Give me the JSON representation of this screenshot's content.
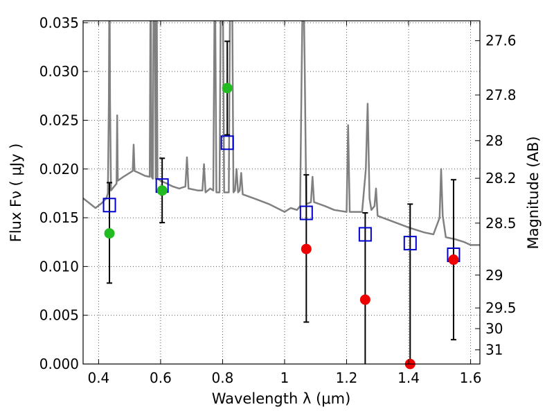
{
  "chart_data": {
    "type": "scatter",
    "xlabel": "Wavelength  λ (μm)",
    "ylabel": "Flux  Fν  ( μJy )",
    "ylabel_right": "Magnitude (AB)",
    "xlim": [
      0.35,
      1.63
    ],
    "ylim": [
      0.0,
      0.0352
    ],
    "grid": true,
    "x_ticks": [
      {
        "v": 0.4,
        "label": "0.4"
      },
      {
        "v": 0.6,
        "label": "0.6"
      },
      {
        "v": 0.8,
        "label": "0.8"
      },
      {
        "v": 1.0,
        "label": "1"
      },
      {
        "v": 1.2,
        "label": "1.2"
      },
      {
        "v": 1.4,
        "label": "1.4"
      },
      {
        "v": 1.6,
        "label": "1.6"
      }
    ],
    "y_ticks": [
      {
        "v": 0.0,
        "label": "0.000"
      },
      {
        "v": 0.005,
        "label": "0.005"
      },
      {
        "v": 0.01,
        "label": "0.010"
      },
      {
        "v": 0.015,
        "label": "0.015"
      },
      {
        "v": 0.02,
        "label": "0.020"
      },
      {
        "v": 0.025,
        "label": "0.025"
      },
      {
        "v": 0.03,
        "label": "0.030"
      },
      {
        "v": 0.035,
        "label": "0.035"
      }
    ],
    "right_ticks": [
      {
        "flux": 0.03316,
        "label": "27.6"
      },
      {
        "flux": 0.02759,
        "label": "27.8"
      },
      {
        "flux": 0.02291,
        "label": "28"
      },
      {
        "flux": 0.01905,
        "label": "28.2"
      },
      {
        "flux": 0.01445,
        "label": "28.5"
      },
      {
        "flux": 0.00912,
        "label": "29"
      },
      {
        "flux": 0.00575,
        "label": "29.5"
      },
      {
        "flux": 0.00363,
        "label": "30"
      },
      {
        "flux": 0.00145,
        "label": "31"
      }
    ],
    "colors": {
      "spectrum": "#808080",
      "model": "#0000cc",
      "detection": "#22bb22",
      "nondetection": "#ee0000",
      "errorbar": "#000000",
      "grid": "#555555"
    },
    "model_points": [
      {
        "x": 0.435,
        "y": 0.0163
      },
      {
        "x": 0.605,
        "y": 0.0183
      },
      {
        "x": 0.815,
        "y": 0.0227
      },
      {
        "x": 1.07,
        "y": 0.0155
      },
      {
        "x": 1.26,
        "y": 0.0133
      },
      {
        "x": 1.405,
        "y": 0.0124
      },
      {
        "x": 1.545,
        "y": 0.0112
      }
    ],
    "observed_points": [
      {
        "x": 0.435,
        "y": 0.0134,
        "lo": 0.0083,
        "hi": 0.0186,
        "color": "green"
      },
      {
        "x": 0.605,
        "y": 0.0178,
        "lo": 0.0145,
        "hi": 0.0211,
        "color": "green"
      },
      {
        "x": 0.815,
        "y": 0.0283,
        "lo": 0.0235,
        "hi": 0.0331,
        "color": "green"
      },
      {
        "x": 1.07,
        "y": 0.0118,
        "lo": 0.0043,
        "hi": 0.0194,
        "color": "red"
      },
      {
        "x": 1.26,
        "y": 0.0066,
        "lo": 0.0,
        "hi": 0.0155,
        "color": "red"
      },
      {
        "x": 1.405,
        "y": 0.0,
        "lo": 0.0,
        "hi": 0.0164,
        "color": "red"
      },
      {
        "x": 1.545,
        "y": 0.0107,
        "lo": 0.0025,
        "hi": 0.0189,
        "color": "red"
      }
    ],
    "spectrum": [
      [
        0.35,
        0.017
      ],
      [
        0.37,
        0.0165
      ],
      [
        0.39,
        0.016
      ],
      [
        0.41,
        0.0165
      ],
      [
        0.425,
        0.017
      ],
      [
        0.43,
        0.0175
      ],
      [
        0.433,
        0.027
      ],
      [
        0.435,
        0.042
      ],
      [
        0.437,
        0.027
      ],
      [
        0.44,
        0.0178
      ],
      [
        0.45,
        0.0182
      ],
      [
        0.458,
        0.0185
      ],
      [
        0.46,
        0.0255
      ],
      [
        0.462,
        0.0188
      ],
      [
        0.48,
        0.0192
      ],
      [
        0.5,
        0.0196
      ],
      [
        0.51,
        0.0198
      ],
      [
        0.513,
        0.0225
      ],
      [
        0.516,
        0.0198
      ],
      [
        0.53,
        0.0196
      ],
      [
        0.55,
        0.0193
      ],
      [
        0.565,
        0.0192
      ],
      [
        0.568,
        0.042
      ],
      [
        0.571,
        0.0192
      ],
      [
        0.575,
        0.019
      ],
      [
        0.578,
        0.042
      ],
      [
        0.581,
        0.042
      ],
      [
        0.584,
        0.019
      ],
      [
        0.587,
        0.042
      ],
      [
        0.59,
        0.019
      ],
      [
        0.6,
        0.0188
      ],
      [
        0.62,
        0.0185
      ],
      [
        0.64,
        0.0182
      ],
      [
        0.66,
        0.018
      ],
      [
        0.68,
        0.0182
      ],
      [
        0.685,
        0.0212
      ],
      [
        0.69,
        0.018
      ],
      [
        0.72,
        0.0178
      ],
      [
        0.735,
        0.0178
      ],
      [
        0.74,
        0.0205
      ],
      [
        0.745,
        0.0176
      ],
      [
        0.76,
        0.018
      ],
      [
        0.77,
        0.0178
      ],
      [
        0.775,
        0.042
      ],
      [
        0.78,
        0.0176
      ],
      [
        0.79,
        0.0176
      ],
      [
        0.795,
        0.042
      ],
      [
        0.8,
        0.042
      ],
      [
        0.805,
        0.0176
      ],
      [
        0.82,
        0.0176
      ],
      [
        0.825,
        0.042
      ],
      [
        0.83,
        0.042
      ],
      [
        0.835,
        0.0176
      ],
      [
        0.84,
        0.0178
      ],
      [
        0.845,
        0.02
      ],
      [
        0.85,
        0.0176
      ],
      [
        0.855,
        0.0178
      ],
      [
        0.86,
        0.0196
      ],
      [
        0.865,
        0.0174
      ],
      [
        0.9,
        0.017
      ],
      [
        0.95,
        0.0164
      ],
      [
        1.0,
        0.0156
      ],
      [
        1.02,
        0.016
      ],
      [
        1.04,
        0.0158
      ],
      [
        1.05,
        0.0162
      ],
      [
        1.055,
        0.03
      ],
      [
        1.06,
        0.042
      ],
      [
        1.065,
        0.03
      ],
      [
        1.07,
        0.0164
      ],
      [
        1.085,
        0.0166
      ],
      [
        1.09,
        0.0192
      ],
      [
        1.095,
        0.0166
      ],
      [
        1.13,
        0.0162
      ],
      [
        1.16,
        0.0158
      ],
      [
        1.2,
        0.0156
      ],
      [
        1.205,
        0.0245
      ],
      [
        1.21,
        0.0156
      ],
      [
        1.25,
        0.0156
      ],
      [
        1.262,
        0.02
      ],
      [
        1.268,
        0.0267
      ],
      [
        1.274,
        0.017
      ],
      [
        1.28,
        0.0158
      ],
      [
        1.29,
        0.0162
      ],
      [
        1.295,
        0.018
      ],
      [
        1.3,
        0.0152
      ],
      [
        1.35,
        0.0146
      ],
      [
        1.4,
        0.014
      ],
      [
        1.45,
        0.0135
      ],
      [
        1.48,
        0.0133
      ],
      [
        1.5,
        0.015
      ],
      [
        1.505,
        0.02
      ],
      [
        1.51,
        0.0152
      ],
      [
        1.52,
        0.013
      ],
      [
        1.55,
        0.0128
      ],
      [
        1.58,
        0.0125
      ],
      [
        1.6,
        0.0122
      ],
      [
        1.63,
        0.0122
      ]
    ]
  }
}
